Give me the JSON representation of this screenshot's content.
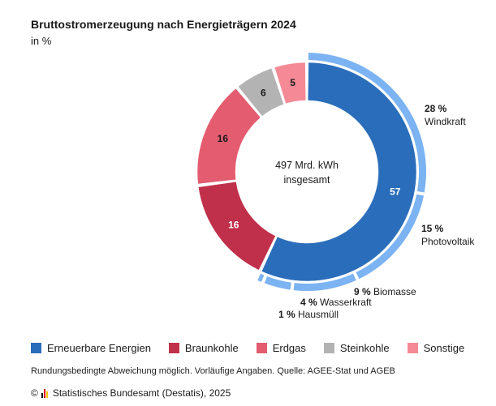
{
  "header": {
    "title": "Bruttostromerzeugung nach Energieträgern 2024",
    "unit": "in %"
  },
  "chart_data": {
    "type": "donut",
    "center_label": [
      "497 Mrd. kWh",
      "insgesamt"
    ],
    "series": [
      {
        "name": "Erneuerbare Energien",
        "value": 57,
        "color": "#2a6ebb"
      },
      {
        "name": "Braunkohle",
        "value": 16,
        "color": "#c1304b"
      },
      {
        "name": "Erdgas",
        "value": 16,
        "color": "#e45c70"
      },
      {
        "name": "Steinkohle",
        "value": 6,
        "color": "#b3b3b3"
      },
      {
        "name": "Sonstige",
        "value": 5,
        "color": "#f58a96"
      }
    ],
    "renewables_breakdown": {
      "color": "#7cb3f2",
      "items": [
        {
          "name": "Windkraft",
          "value": 28,
          "label": "28 %"
        },
        {
          "name": "Photovoltaik",
          "value": 15,
          "label": "15 %"
        },
        {
          "name": "Biomasse",
          "value": 9,
          "label": "9 %"
        },
        {
          "name": "Wasserkraft",
          "value": 4,
          "label": "4 %"
        },
        {
          "name": "Hausmüll",
          "value": 1,
          "label": "1 %"
        }
      ]
    }
  },
  "legend": [
    {
      "label": "Erneuerbare Energien",
      "color": "#2a6ebb"
    },
    {
      "label": "Braunkohle",
      "color": "#c1304b"
    },
    {
      "label": "Erdgas",
      "color": "#e45c70"
    },
    {
      "label": "Steinkohle",
      "color": "#b3b3b3"
    },
    {
      "label": "Sonstige",
      "color": "#f58a96"
    }
  ],
  "note": "Rundungsbedingte Abweichung möglich. Vorläufige Angaben. Quelle: AGEE-Stat und AGEB",
  "footer": {
    "copyright": "©",
    "publisher": "Statistisches Bundesamt (Destatis), 2025"
  }
}
